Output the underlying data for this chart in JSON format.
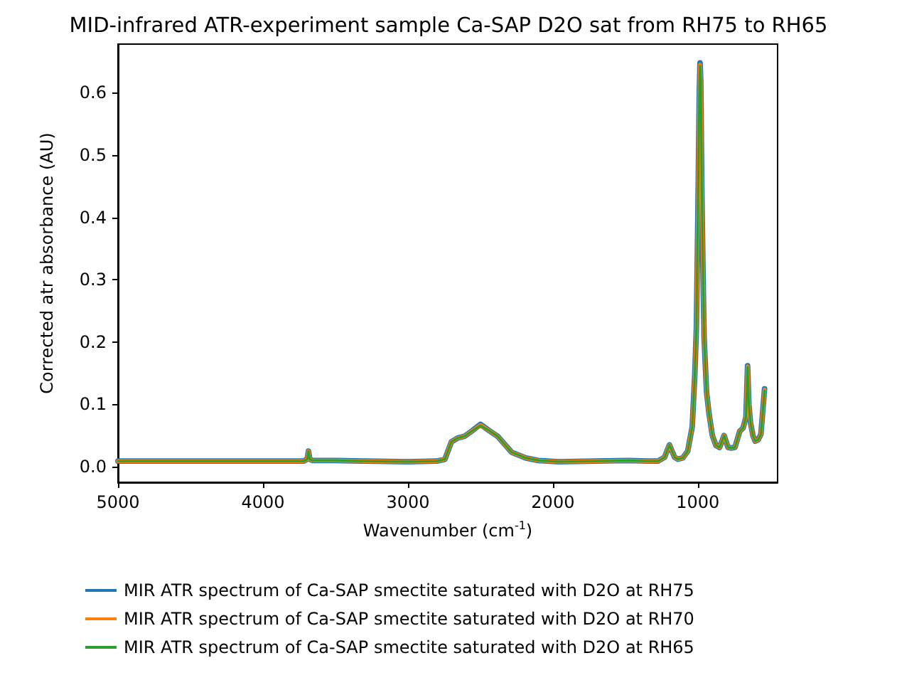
{
  "chart_data": {
    "type": "line",
    "title": "MID-infrared ATR-experiment sample Ca-SAP D2O sat from RH75 to RH65",
    "xlabel": "Wavenumber (cm$^{-1}$)",
    "ylabel": "Corrected atr absorbance (AU)",
    "x": [
      5000,
      4500,
      4000,
      3720,
      3695,
      3686,
      3677,
      3660,
      3500,
      3300,
      3000,
      2800,
      2745,
      2700,
      2657,
      2608,
      2560,
      2500,
      2440,
      2382,
      2284,
      2186,
      2100,
      1961,
      1700,
      1480,
      1350,
      1275,
      1230,
      1196,
      1160,
      1137,
      1104,
      1070,
      1039,
      1021,
      1010,
      1000,
      990,
      985,
      980,
      973,
      965,
      957,
      940,
      924,
      900,
      875,
      850,
      819,
      792,
      770,
      744,
      711,
      688,
      668,
      657,
      648,
      637,
      620,
      605,
      585,
      565,
      540
    ],
    "series": [
      {
        "name": "MIR ATR spectrum of Ca-SAP smectite saturated with D2O at RH75",
        "color": "#1f77b4",
        "values": [
          0.009,
          0.009,
          0.009,
          0.009,
          0.012,
          0.025,
          0.012,
          0.01,
          0.01,
          0.009,
          0.008,
          0.009,
          0.012,
          0.04,
          0.046,
          0.049,
          0.057,
          0.068,
          0.058,
          0.049,
          0.023,
          0.014,
          0.01,
          0.008,
          0.009,
          0.01,
          0.009,
          0.009,
          0.015,
          0.035,
          0.015,
          0.012,
          0.014,
          0.025,
          0.064,
          0.148,
          0.224,
          0.4,
          0.6,
          0.648,
          0.62,
          0.452,
          0.32,
          0.208,
          0.12,
          0.087,
          0.05,
          0.034,
          0.031,
          0.05,
          0.031,
          0.03,
          0.031,
          0.057,
          0.062,
          0.08,
          0.162,
          0.1,
          0.071,
          0.05,
          0.041,
          0.043,
          0.052,
          0.125
        ]
      },
      {
        "name": "MIR ATR spectrum of Ca-SAP smectite saturated with D2O at RH70",
        "color": "#ff7f0e",
        "values": [
          0.009,
          0.009,
          0.009,
          0.009,
          0.012,
          0.025,
          0.012,
          0.01,
          0.01,
          0.009,
          0.008,
          0.009,
          0.012,
          0.04,
          0.046,
          0.049,
          0.057,
          0.067,
          0.058,
          0.049,
          0.023,
          0.014,
          0.01,
          0.008,
          0.009,
          0.01,
          0.009,
          0.009,
          0.015,
          0.035,
          0.015,
          0.012,
          0.014,
          0.025,
          0.064,
          0.148,
          0.224,
          0.4,
          0.6,
          0.645,
          0.62,
          0.452,
          0.32,
          0.208,
          0.12,
          0.087,
          0.05,
          0.034,
          0.031,
          0.05,
          0.031,
          0.03,
          0.031,
          0.057,
          0.062,
          0.08,
          0.161,
          0.1,
          0.071,
          0.05,
          0.041,
          0.043,
          0.052,
          0.124
        ]
      },
      {
        "name": "MIR ATR spectrum of Ca-SAP smectite saturated with D2O at RH65",
        "color": "#2ca02c",
        "values": [
          0.009,
          0.009,
          0.009,
          0.009,
          0.012,
          0.025,
          0.012,
          0.01,
          0.01,
          0.009,
          0.008,
          0.009,
          0.012,
          0.04,
          0.046,
          0.049,
          0.057,
          0.066,
          0.058,
          0.049,
          0.023,
          0.014,
          0.01,
          0.008,
          0.009,
          0.01,
          0.009,
          0.009,
          0.015,
          0.035,
          0.015,
          0.012,
          0.014,
          0.025,
          0.064,
          0.148,
          0.224,
          0.4,
          0.6,
          0.643,
          0.62,
          0.452,
          0.32,
          0.208,
          0.12,
          0.087,
          0.05,
          0.034,
          0.031,
          0.05,
          0.031,
          0.03,
          0.031,
          0.057,
          0.062,
          0.08,
          0.16,
          0.1,
          0.071,
          0.05,
          0.041,
          0.043,
          0.052,
          0.122
        ]
      }
    ],
    "xlim": [
      5000,
      450
    ],
    "xticks": [
      5000,
      4000,
      3000,
      2000,
      1000
    ],
    "ylim": [
      -0.025,
      0.678
    ],
    "yticks": [
      {
        "value": 0,
        "label": "0.0"
      },
      0.1,
      0.2,
      0.3,
      0.4,
      0.5,
      0.6
    ],
    "grid": false,
    "legend": "bottom",
    "marker": "none",
    "line_style": "solid"
  }
}
